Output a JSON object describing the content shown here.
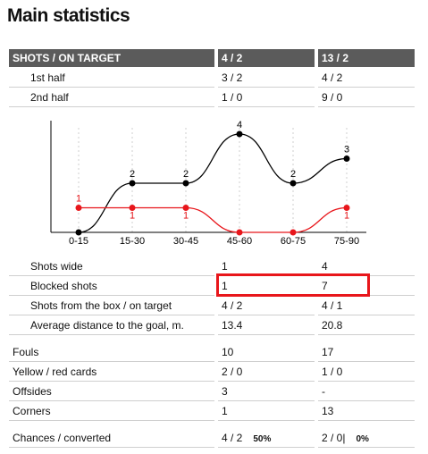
{
  "title": "Main statistics",
  "header": [
    "SHOTS / ON TARGET",
    "4 / 2",
    "13 / 2"
  ],
  "halves": [
    [
      "1st half",
      "3 / 2",
      "4 / 2"
    ],
    [
      "2nd half",
      "1 / 0",
      "9 / 0"
    ]
  ],
  "chart_data": {
    "type": "line",
    "categories": [
      "0-15",
      "15-30",
      "30-45",
      "45-60",
      "60-75",
      "75-90"
    ],
    "series": [
      {
        "color": "#000000",
        "values": [
          0,
          2,
          2,
          4,
          2,
          3
        ]
      },
      {
        "color": "#e8161b",
        "values": [
          1,
          1,
          1,
          0,
          0,
          1
        ]
      }
    ],
    "ylim": [
      0,
      4
    ]
  },
  "shots": [
    [
      "Shots wide",
      "1",
      "4"
    ],
    [
      "Blocked shots",
      "1",
      "7"
    ],
    [
      "Shots from the box / on target",
      "4 / 2",
      "4 / 1"
    ],
    [
      "Average distance to the goal, m.",
      "13.4",
      "20.8"
    ]
  ],
  "discipline": [
    [
      "Fouls",
      "10",
      "17"
    ],
    [
      "Yellow / red cards",
      "2 / 0",
      "1 / 0"
    ],
    [
      "Offsides",
      "3",
      "-"
    ],
    [
      "Corners",
      "1",
      "13"
    ]
  ],
  "chances": {
    "label": "Chances / converted",
    "home": "4 / 2",
    "home_pct": "50%",
    "away": "2 / 0|",
    "away_pct": "0%"
  }
}
